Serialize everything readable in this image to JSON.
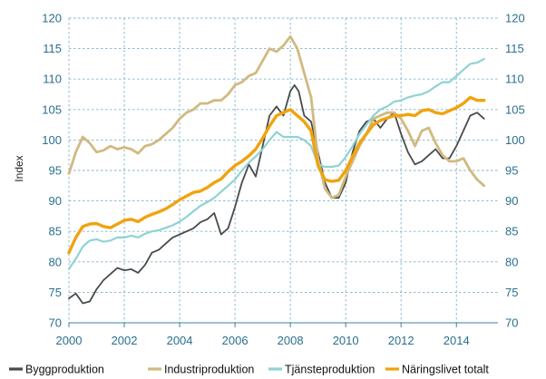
{
  "chart_data": {
    "type": "line",
    "title": "",
    "xlabel": "",
    "ylabel": "Index",
    "xlim": [
      2000,
      2015.5
    ],
    "ylim": [
      70,
      120
    ],
    "grid": true,
    "legend_position": "bottom",
    "x_ticks": [
      2000,
      2002,
      2004,
      2006,
      2008,
      2010,
      2012,
      2014
    ],
    "x_tick_labels": [
      "2000",
      "2002",
      "2004",
      "2006",
      "2008",
      "2010",
      "2012",
      "2014"
    ],
    "y_ticks": [
      70,
      75,
      80,
      85,
      90,
      95,
      100,
      105,
      110,
      115,
      120
    ],
    "y_tick_labels": [
      "70",
      "75",
      "80",
      "85",
      "90",
      "95",
      "100",
      "105",
      "110",
      "115",
      "120"
    ],
    "series": [
      {
        "name": "Byggproduktion",
        "color": "#4a4a4a",
        "width": 1.8,
        "points": [
          [
            2000,
            74
          ],
          [
            2000.25,
            74.8
          ],
          [
            2000.5,
            73.2
          ],
          [
            2000.75,
            73.5
          ],
          [
            2001,
            75.5
          ],
          [
            2001.25,
            77
          ],
          [
            2001.5,
            78
          ],
          [
            2001.75,
            79
          ],
          [
            2002,
            78.6
          ],
          [
            2002.25,
            78.8
          ],
          [
            2002.5,
            78.2
          ],
          [
            2002.75,
            79.5
          ],
          [
            2003,
            81.5
          ],
          [
            2003.25,
            82
          ],
          [
            2003.5,
            83
          ],
          [
            2003.75,
            84
          ],
          [
            2004,
            84.5
          ],
          [
            2004.25,
            85
          ],
          [
            2004.5,
            85.5
          ],
          [
            2004.75,
            86.5
          ],
          [
            2005,
            87
          ],
          [
            2005.25,
            88
          ],
          [
            2005.5,
            84.5
          ],
          [
            2005.75,
            85.5
          ],
          [
            2006,
            89
          ],
          [
            2006.25,
            93
          ],
          [
            2006.5,
            96
          ],
          [
            2006.75,
            94
          ],
          [
            2007,
            99
          ],
          [
            2007.25,
            104
          ],
          [
            2007.5,
            105.5
          ],
          [
            2007.75,
            104
          ],
          [
            2008,
            108
          ],
          [
            2008.15,
            109
          ],
          [
            2008.3,
            108
          ],
          [
            2008.5,
            104
          ],
          [
            2008.75,
            103
          ],
          [
            2009,
            98
          ],
          [
            2009.25,
            93
          ],
          [
            2009.5,
            90.5
          ],
          [
            2009.75,
            90.5
          ],
          [
            2010,
            93
          ],
          [
            2010.25,
            98
          ],
          [
            2010.5,
            101.5
          ],
          [
            2010.75,
            103
          ],
          [
            2011,
            103.5
          ],
          [
            2011.25,
            102
          ],
          [
            2011.5,
            103.5
          ],
          [
            2011.75,
            104.5
          ],
          [
            2012,
            101
          ],
          [
            2012.25,
            98
          ],
          [
            2012.5,
            96
          ],
          [
            2012.75,
            96.5
          ],
          [
            2013,
            97.5
          ],
          [
            2013.25,
            98.5
          ],
          [
            2013.5,
            97
          ],
          [
            2013.75,
            97
          ],
          [
            2014,
            99
          ],
          [
            2014.25,
            101.5
          ],
          [
            2014.5,
            104
          ],
          [
            2014.75,
            104.5
          ],
          [
            2015,
            103.5
          ]
        ]
      },
      {
        "name": "Industriproduktion",
        "color": "#d1b980",
        "width": 2.8,
        "points": [
          [
            2000,
            94.5
          ],
          [
            2000.25,
            98
          ],
          [
            2000.5,
            100.5
          ],
          [
            2000.75,
            99.5
          ],
          [
            2001,
            98
          ],
          [
            2001.25,
            98.3
          ],
          [
            2001.5,
            99
          ],
          [
            2001.75,
            98.5
          ],
          [
            2002,
            98.8
          ],
          [
            2002.25,
            98.5
          ],
          [
            2002.5,
            97.8
          ],
          [
            2002.75,
            99
          ],
          [
            2003,
            99.3
          ],
          [
            2003.25,
            100
          ],
          [
            2003.5,
            101
          ],
          [
            2003.75,
            102
          ],
          [
            2004,
            103.5
          ],
          [
            2004.25,
            104.5
          ],
          [
            2004.5,
            105
          ],
          [
            2004.75,
            106
          ],
          [
            2005,
            106
          ],
          [
            2005.25,
            106.5
          ],
          [
            2005.5,
            106.5
          ],
          [
            2005.75,
            107.5
          ],
          [
            2006,
            109
          ],
          [
            2006.25,
            109.5
          ],
          [
            2006.5,
            110.5
          ],
          [
            2006.75,
            111
          ],
          [
            2007,
            113
          ],
          [
            2007.25,
            115
          ],
          [
            2007.5,
            114.5
          ],
          [
            2007.75,
            115.5
          ],
          [
            2008,
            117
          ],
          [
            2008.25,
            115
          ],
          [
            2008.5,
            111
          ],
          [
            2008.75,
            107
          ],
          [
            2009,
            97
          ],
          [
            2009.25,
            92
          ],
          [
            2009.5,
            90.5
          ],
          [
            2009.75,
            91
          ],
          [
            2010,
            94
          ],
          [
            2010.25,
            96.5
          ],
          [
            2010.5,
            99
          ],
          [
            2010.75,
            101
          ],
          [
            2011,
            103.5
          ],
          [
            2011.25,
            104
          ],
          [
            2011.5,
            104.5
          ],
          [
            2011.75,
            104.5
          ],
          [
            2012,
            103.5
          ],
          [
            2012.25,
            101.5
          ],
          [
            2012.5,
            99
          ],
          [
            2012.75,
            101.5
          ],
          [
            2013,
            102
          ],
          [
            2013.25,
            99.5
          ],
          [
            2013.5,
            97.5
          ],
          [
            2013.75,
            96.5
          ],
          [
            2014,
            96.5
          ],
          [
            2014.25,
            97
          ],
          [
            2014.5,
            95
          ],
          [
            2014.75,
            93.5
          ],
          [
            2015,
            92.5
          ]
        ]
      },
      {
        "name": "Tjänsteproduktion",
        "color": "#8fd3d3",
        "width": 2.2,
        "points": [
          [
            2000,
            78.8
          ],
          [
            2000.25,
            80.5
          ],
          [
            2000.5,
            82.5
          ],
          [
            2000.75,
            83.5
          ],
          [
            2001,
            83.7
          ],
          [
            2001.25,
            83.3
          ],
          [
            2001.5,
            83.5
          ],
          [
            2001.75,
            84
          ],
          [
            2002,
            84
          ],
          [
            2002.25,
            84.3
          ],
          [
            2002.5,
            84
          ],
          [
            2002.75,
            84.6
          ],
          [
            2003,
            85
          ],
          [
            2003.25,
            85.2
          ],
          [
            2003.5,
            85.6
          ],
          [
            2003.75,
            86
          ],
          [
            2004,
            86.6
          ],
          [
            2004.25,
            87.4
          ],
          [
            2004.5,
            88.3
          ],
          [
            2004.75,
            89.2
          ],
          [
            2005,
            89.8
          ],
          [
            2005.25,
            90.5
          ],
          [
            2005.5,
            91.5
          ],
          [
            2005.75,
            92.5
          ],
          [
            2006,
            93.5
          ],
          [
            2006.25,
            95
          ],
          [
            2006.5,
            96.3
          ],
          [
            2006.75,
            97.3
          ],
          [
            2007,
            98.5
          ],
          [
            2007.25,
            100
          ],
          [
            2007.5,
            101.3
          ],
          [
            2007.75,
            100.5
          ],
          [
            2008,
            100.5
          ],
          [
            2008.25,
            100.5
          ],
          [
            2008.5,
            100
          ],
          [
            2008.75,
            99
          ],
          [
            2009,
            96
          ],
          [
            2009.25,
            95.6
          ],
          [
            2009.5,
            95.6
          ],
          [
            2009.75,
            95.8
          ],
          [
            2010,
            97.2
          ],
          [
            2010.25,
            99
          ],
          [
            2010.5,
            101
          ],
          [
            2010.75,
            102.5
          ],
          [
            2011,
            104
          ],
          [
            2011.25,
            105
          ],
          [
            2011.5,
            105.5
          ],
          [
            2011.75,
            106.3
          ],
          [
            2012,
            106.5
          ],
          [
            2012.25,
            107
          ],
          [
            2012.5,
            107.3
          ],
          [
            2012.75,
            107.5
          ],
          [
            2013,
            108
          ],
          [
            2013.25,
            108.8
          ],
          [
            2013.5,
            109.5
          ],
          [
            2013.75,
            109.5
          ],
          [
            2014,
            110.5
          ],
          [
            2014.25,
            111.5
          ],
          [
            2014.5,
            112.5
          ],
          [
            2014.75,
            112.7
          ],
          [
            2015,
            113.3
          ]
        ]
      },
      {
        "name": "Näringslivet totalt",
        "color": "#f0a30f",
        "width": 3.4,
        "points": [
          [
            2000,
            81.5
          ],
          [
            2000.25,
            84
          ],
          [
            2000.5,
            85.8
          ],
          [
            2000.75,
            86.2
          ],
          [
            2001,
            86.3
          ],
          [
            2001.25,
            85.8
          ],
          [
            2001.5,
            85.6
          ],
          [
            2001.75,
            86.2
          ],
          [
            2002,
            86.8
          ],
          [
            2002.25,
            87
          ],
          [
            2002.5,
            86.6
          ],
          [
            2002.75,
            87.3
          ],
          [
            2003,
            87.8
          ],
          [
            2003.25,
            88.2
          ],
          [
            2003.5,
            88.7
          ],
          [
            2003.75,
            89.4
          ],
          [
            2004,
            90.2
          ],
          [
            2004.25,
            90.8
          ],
          [
            2004.5,
            91.4
          ],
          [
            2004.75,
            91.6
          ],
          [
            2005,
            92.2
          ],
          [
            2005.25,
            93
          ],
          [
            2005.5,
            93.6
          ],
          [
            2005.75,
            94.8
          ],
          [
            2006,
            95.8
          ],
          [
            2006.25,
            96.5
          ],
          [
            2006.5,
            97.4
          ],
          [
            2006.75,
            98.5
          ],
          [
            2007,
            100.3
          ],
          [
            2007.25,
            102.3
          ],
          [
            2007.5,
            104
          ],
          [
            2007.75,
            104.5
          ],
          [
            2008,
            105
          ],
          [
            2008.25,
            104
          ],
          [
            2008.5,
            103
          ],
          [
            2008.75,
            101.5
          ],
          [
            2009,
            95.8
          ],
          [
            2009.25,
            93.5
          ],
          [
            2009.5,
            93.2
          ],
          [
            2009.75,
            93.4
          ],
          [
            2010,
            95
          ],
          [
            2010.25,
            97.3
          ],
          [
            2010.5,
            99.5
          ],
          [
            2010.75,
            101
          ],
          [
            2011,
            102.5
          ],
          [
            2011.25,
            103.2
          ],
          [
            2011.5,
            103.6
          ],
          [
            2011.75,
            104
          ],
          [
            2012,
            104
          ],
          [
            2012.25,
            104.2
          ],
          [
            2012.5,
            104
          ],
          [
            2012.75,
            104.8
          ],
          [
            2013,
            105
          ],
          [
            2013.25,
            104.5
          ],
          [
            2013.5,
            104.3
          ],
          [
            2013.75,
            104.8
          ],
          [
            2014,
            105.3
          ],
          [
            2014.25,
            106
          ],
          [
            2014.5,
            107
          ],
          [
            2014.75,
            106.5
          ],
          [
            2015,
            106.5
          ]
        ]
      }
    ]
  }
}
